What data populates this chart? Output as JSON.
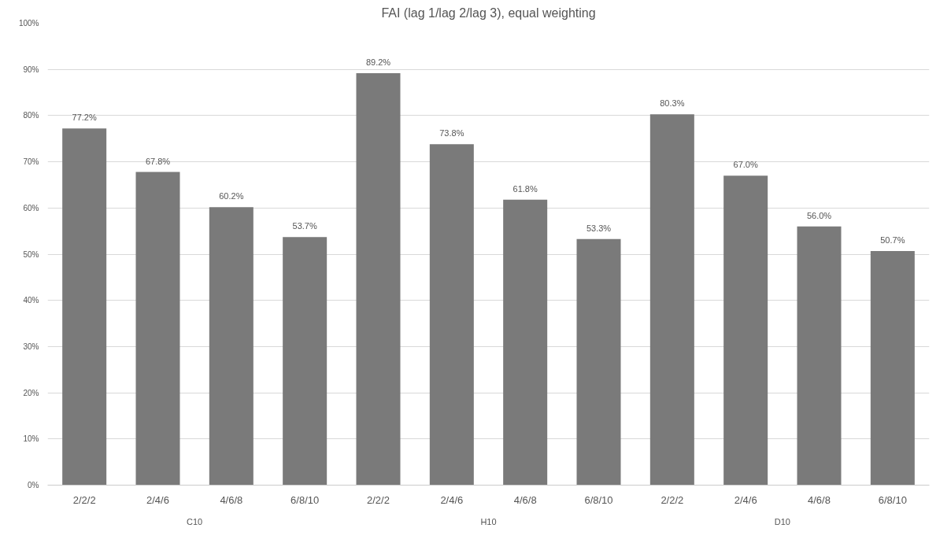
{
  "chart_data": {
    "type": "bar",
    "title": "FAI (lag 1/lag 2/lag 3), equal weighting",
    "categories": [
      "2/2/2",
      "2/4/6",
      "4/6/8",
      "6/8/10",
      "2/2/2",
      "2/4/6",
      "4/6/8",
      "6/8/10",
      "2/2/2",
      "2/4/6",
      "4/6/8",
      "6/8/10"
    ],
    "values": [
      77.2,
      67.8,
      60.2,
      53.7,
      89.2,
      73.8,
      61.8,
      53.3,
      80.3,
      67.0,
      56.0,
      50.7
    ],
    "value_labels": [
      "77.2%",
      "67.8%",
      "60.2%",
      "53.7%",
      "89.2%",
      "73.8%",
      "61.8%",
      "53.3%",
      "80.3%",
      "67.0%",
      "56.0%",
      "50.7%"
    ],
    "color": "#7a7a7a",
    "ylim": [
      0,
      100
    ],
    "yticks": [
      {
        "value": 0,
        "label": "0%"
      },
      {
        "value": 10,
        "label": "10%"
      },
      {
        "value": 20,
        "label": "20%"
      },
      {
        "value": 30,
        "label": "30%"
      },
      {
        "value": 40,
        "label": "40%"
      },
      {
        "value": 50,
        "label": "50%"
      },
      {
        "value": 60,
        "label": "60%"
      },
      {
        "value": 70,
        "label": "70%"
      },
      {
        "value": 80,
        "label": "80%"
      },
      {
        "value": 90,
        "label": "90%"
      },
      {
        "value": 100,
        "label": "100%"
      }
    ],
    "annotations": [
      "C10",
      "H10",
      "D10"
    ],
    "grid": "y"
  }
}
